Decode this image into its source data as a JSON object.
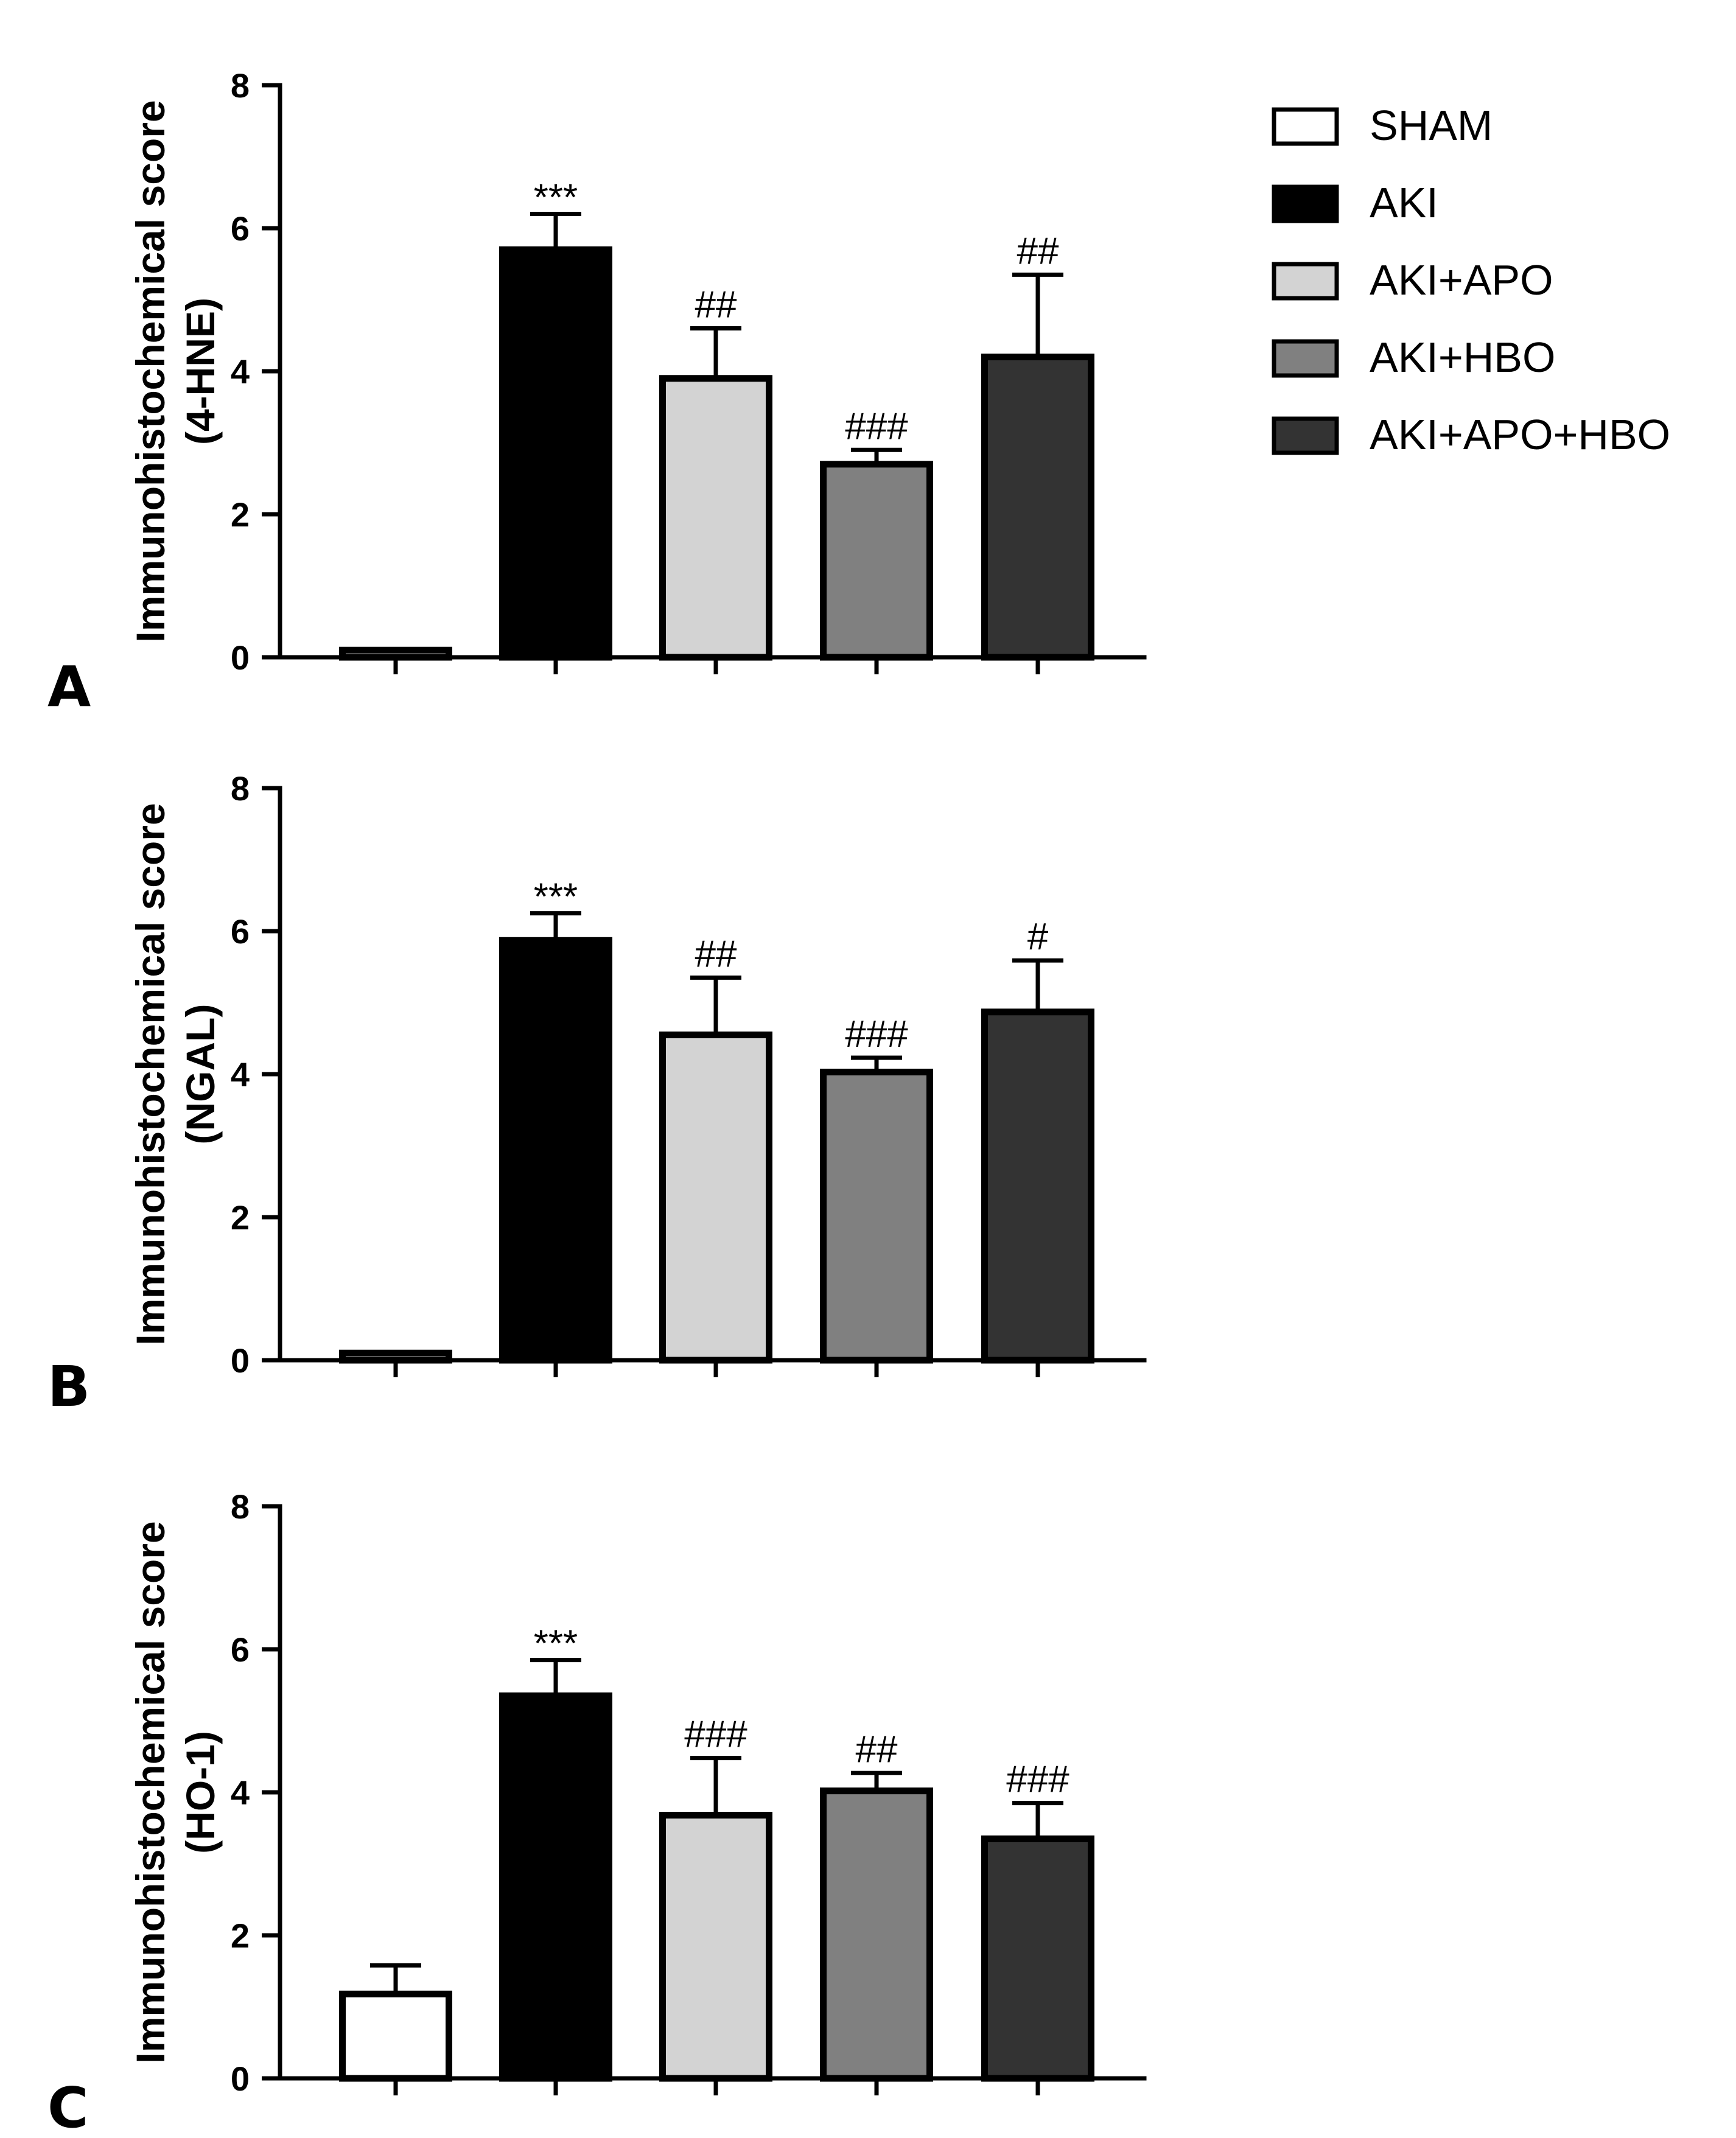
{
  "chart_data": [
    {
      "type": "bar",
      "panel": "A",
      "ylabel": [
        "Immunohistochemical score",
        "(4-HNE)"
      ],
      "ylim": [
        0,
        8
      ],
      "yticks": [
        0,
        2,
        4,
        6,
        8
      ],
      "categories": [
        "SHAM",
        "AKI",
        "AKI+APO",
        "AKI+HBO",
        "AKI+APO+HBO"
      ],
      "values": [
        0.1,
        5.7,
        3.9,
        2.7,
        4.2
      ],
      "errors": [
        0,
        0.5,
        0.7,
        0.2,
        1.15
      ],
      "annotations": [
        "",
        "***",
        "##",
        "###",
        "##"
      ]
    },
    {
      "type": "bar",
      "panel": "B",
      "ylabel": [
        "Immunohistochemical score",
        "(NGAL)"
      ],
      "ylim": [
        0,
        8
      ],
      "yticks": [
        0,
        2,
        4,
        6,
        8
      ],
      "categories": [
        "SHAM",
        "AKI",
        "AKI+APO",
        "AKI+HBO",
        "AKI+APO+HBO"
      ],
      "values": [
        0.1,
        5.87,
        4.55,
        4.03,
        4.87
      ],
      "errors": [
        0,
        0.38,
        0.8,
        0.2,
        0.72
      ],
      "annotations": [
        "",
        "***",
        "##",
        "###",
        "#"
      ]
    },
    {
      "type": "bar",
      "panel": "C",
      "ylabel": [
        "Immunohistochemical score",
        "(HO-1)"
      ],
      "ylim": [
        0,
        8
      ],
      "yticks": [
        0,
        2,
        4,
        6,
        8
      ],
      "categories": [
        "SHAM",
        "AKI",
        "AKI+APO",
        "AKI+HBO",
        "AKI+APO+HBO"
      ],
      "values": [
        1.18,
        5.35,
        3.68,
        4.02,
        3.35
      ],
      "errors": [
        0.4,
        0.5,
        0.8,
        0.25,
        0.5
      ],
      "annotations": [
        "",
        "***",
        "###",
        "##",
        "###"
      ]
    }
  ],
  "legend": [
    {
      "label": "SHAM",
      "color": "#ffffff"
    },
    {
      "label": "AKI",
      "color": "#000000"
    },
    {
      "label": "AKI+APO",
      "color": "#d3d3d3"
    },
    {
      "label": "AKI+HBO",
      "color": "#808080"
    },
    {
      "label": "AKI+APO+HBO",
      "color": "#333333"
    }
  ]
}
